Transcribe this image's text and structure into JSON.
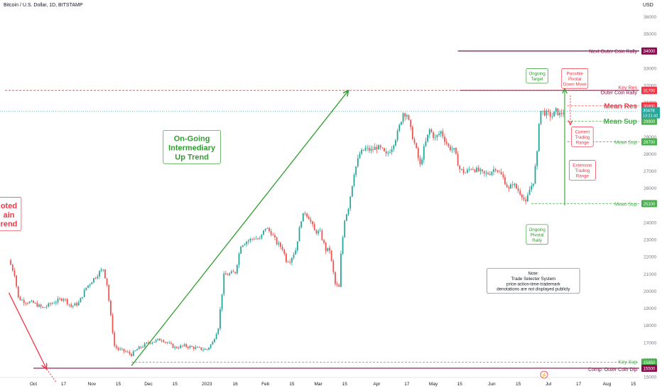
{
  "header": {
    "title": "Bitcoin / U.S. Dollar, 1D, BITSTAMP",
    "currency": "USD"
  },
  "chart_data": {
    "type": "candlestick",
    "ylim": [
      15000,
      36500
    ],
    "y_ticks": [
      15000,
      16000,
      17000,
      18000,
      19000,
      20000,
      21000,
      22000,
      23000,
      24000,
      25000,
      26000,
      27000,
      28000,
      29000,
      30000,
      31000,
      32000,
      33000,
      34000,
      35000,
      36000
    ],
    "x_ticks": [
      {
        "label": "Oct",
        "day": 0
      },
      {
        "label": "17",
        "day": 16
      },
      {
        "label": "Nov",
        "day": 31
      },
      {
        "label": "15",
        "day": 45
      },
      {
        "label": "Dec",
        "day": 61
      },
      {
        "label": "15",
        "day": 75
      },
      {
        "label": "2023",
        "day": 92
      },
      {
        "label": "16",
        "day": 107
      },
      {
        "label": "Feb",
        "day": 123
      },
      {
        "label": "15",
        "day": 137
      },
      {
        "label": "Mar",
        "day": 151
      },
      {
        "label": "15",
        "day": 165
      },
      {
        "label": "Apr",
        "day": 182
      },
      {
        "label": "17",
        "day": 198
      },
      {
        "label": "May",
        "day": 212
      },
      {
        "label": "15",
        "day": 226
      },
      {
        "label": "Jun",
        "day": 243
      },
      {
        "label": "15",
        "day": 257
      },
      {
        "label": "Jul",
        "day": 273
      },
      {
        "label": "17",
        "day": 289
      },
      {
        "label": "Aug",
        "day": 304
      },
      {
        "label": "15",
        "day": 318
      }
    ],
    "price_path": [
      [
        -13,
        21800
      ],
      [
        -10,
        21000
      ],
      [
        -8,
        19600
      ],
      [
        -5,
        19400
      ],
      [
        0,
        19300
      ],
      [
        5,
        19000
      ],
      [
        10,
        19300
      ],
      [
        16,
        19600
      ],
      [
        20,
        19100
      ],
      [
        24,
        19300
      ],
      [
        28,
        20200
      ],
      [
        31,
        20600
      ],
      [
        35,
        21100
      ],
      [
        37,
        21300
      ],
      [
        39,
        20400
      ],
      [
        41,
        18500
      ],
      [
        43,
        16800
      ],
      [
        45,
        16600
      ],
      [
        48,
        16500
      ],
      [
        52,
        16300
      ],
      [
        55,
        16600
      ],
      [
        58,
        16800
      ],
      [
        61,
        17000
      ],
      [
        65,
        17100
      ],
      [
        68,
        17200
      ],
      [
        72,
        16900
      ],
      [
        75,
        16700
      ],
      [
        80,
        16800
      ],
      [
        85,
        16700
      ],
      [
        90,
        16600
      ],
      [
        92,
        16600
      ],
      [
        95,
        17000
      ],
      [
        98,
        17900
      ],
      [
        101,
        20900
      ],
      [
        104,
        21000
      ],
      [
        107,
        21100
      ],
      [
        110,
        22700
      ],
      [
        113,
        22900
      ],
      [
        117,
        23100
      ],
      [
        120,
        23000
      ],
      [
        123,
        23700
      ],
      [
        126,
        23400
      ],
      [
        129,
        22800
      ],
      [
        132,
        22500
      ],
      [
        134,
        21800
      ],
      [
        136,
        21800
      ],
      [
        139,
        22400
      ],
      [
        142,
        24200
      ],
      [
        144,
        24600
      ],
      [
        146,
        24300
      ],
      [
        149,
        23500
      ],
      [
        152,
        23400
      ],
      [
        155,
        22400
      ],
      [
        157,
        22400
      ],
      [
        158,
        21700
      ],
      [
        160,
        20400
      ],
      [
        162,
        20200
      ],
      [
        163,
        22100
      ],
      [
        165,
        24200
      ],
      [
        167,
        24900
      ],
      [
        170,
        26900
      ],
      [
        173,
        28000
      ],
      [
        176,
        28300
      ],
      [
        179,
        28200
      ],
      [
        182,
        28400
      ],
      [
        185,
        28200
      ],
      [
        187,
        27900
      ],
      [
        190,
        28400
      ],
      [
        193,
        29200
      ],
      [
        196,
        30400
      ],
      [
        198,
        30300
      ],
      [
        200,
        29400
      ],
      [
        203,
        28200
      ],
      [
        205,
        27300
      ],
      [
        207,
        28300
      ],
      [
        210,
        29400
      ],
      [
        213,
        28900
      ],
      [
        216,
        29300
      ],
      [
        220,
        28400
      ],
      [
        223,
        28200
      ],
      [
        226,
        27100
      ],
      [
        229,
        26900
      ],
      [
        232,
        27200
      ],
      [
        236,
        27000
      ],
      [
        239,
        26800
      ],
      [
        242,
        26900
      ],
      [
        245,
        27200
      ],
      [
        249,
        26600
      ],
      [
        252,
        25900
      ],
      [
        254,
        26300
      ],
      [
        256,
        26000
      ],
      [
        259,
        25600
      ],
      [
        261,
        25100
      ],
      [
        263,
        25900
      ],
      [
        265,
        26400
      ],
      [
        267,
        28000
      ],
      [
        268,
        29900
      ],
      [
        269,
        30500
      ],
      [
        271,
        30400
      ],
      [
        273,
        30300
      ],
      [
        275,
        30200
      ],
      [
        277,
        30500
      ],
      [
        279,
        30300
      ],
      [
        281,
        30478
      ]
    ],
    "candle_days_before_oct1": 13,
    "last_day": 281,
    "horizontal_levels": [
      {
        "name": "Next Outer Coin Rally",
        "value": 34000,
        "color": "#880e4f",
        "x_from_day": 225,
        "box": "34000"
      },
      {
        "name": "Outer Coin Rally",
        "value": 31700,
        "color": "#880e4f",
        "x_from_day": 226,
        "box": "31700"
      },
      {
        "name": "Key Res",
        "value": 31700,
        "color": "#f23645",
        "x_from_day": -15,
        "box": "31700",
        "dashed": true
      },
      {
        "name": "Mean Res",
        "value": 30800,
        "color": "#f23645",
        "x_from_day": 283,
        "box": "30800",
        "dashed": true
      },
      {
        "name": "Mean Sup",
        "value": 29900,
        "color": "#4caf50",
        "x_from_day": 283,
        "box": "29900",
        "dashed": true
      },
      {
        "name": "Mean Sup",
        "value": 28700,
        "color": "#4caf50",
        "x_from_day": 283,
        "box": "28700",
        "dashed": true
      },
      {
        "name": "Mean Sup",
        "value": 25100,
        "color": "#4caf50",
        "x_from_day": 264,
        "box": "25100",
        "dashed": true
      },
      {
        "name": "Key Sup",
        "value": 15850,
        "color": "#4caf50",
        "x_from_day": 52,
        "box": "15850",
        "dashed": true
      },
      {
        "name": "Comp. Outer Coin Dip",
        "value": 15500,
        "color": "#880e4f",
        "x_from_day": 0,
        "box": "15500"
      }
    ],
    "last_price_box": {
      "value": "30478",
      "countdown": "13:21:42",
      "color": "#26a69a"
    },
    "trend_lines": [
      {
        "color": "#f23645",
        "from": [
          -13,
          19900
        ],
        "to": [
          7,
          15450
        ]
      },
      {
        "color": "#2e9e2e",
        "from": [
          52,
          15650
        ],
        "to": [
          167,
          31700
        ]
      }
    ],
    "annotations": [
      {
        "text": "On-Going\nIntermediary\nUp Trend",
        "color": "#2e9e2e",
        "at_day": 84,
        "at_value": 28400
      },
      {
        "text": "oted\nain\nrend",
        "color": "#f23645",
        "at_day": -13,
        "at_value": 24500
      },
      {
        "text": "Ongoing\nTarget",
        "color": "#2e9e2e",
        "at_day": 267,
        "at_value": 32550
      },
      {
        "text": "Possible\nPivotal\nDown Move",
        "color": "#f23645",
        "at_day": 287,
        "at_value": 32400
      },
      {
        "text": "Current\nTrading\nRange",
        "color": "#f23645",
        "at_day": 291,
        "at_value": 29000
      },
      {
        "text": "Extension\nTrading\nRange",
        "color": "#f23645",
        "at_day": 291,
        "at_value": 27050
      },
      {
        "text": "Ongoing\nPivotal\nRally",
        "color": "#2e9e2e",
        "at_day": 267,
        "at_value": 23300
      },
      {
        "text": "Note:\nTrade Selecter System\nprice-action-time-trademark\ndenotations are not displayed publicly",
        "color": "#131722",
        "at_day": 265,
        "at_value": 20600
      }
    ]
  }
}
